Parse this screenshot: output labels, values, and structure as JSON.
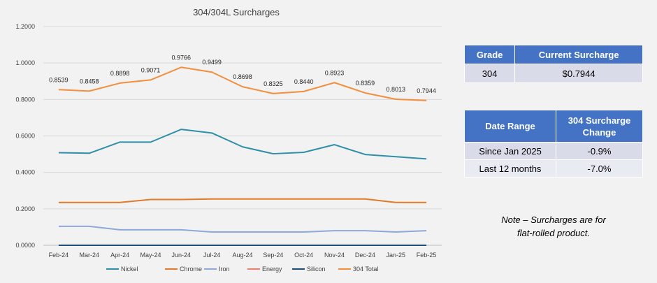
{
  "chart_data": {
    "type": "line",
    "title": "304/304L Surcharges",
    "categories": [
      "Feb-24",
      "Mar-24",
      "Apr-24",
      "May-24",
      "Jun-24",
      "Jul-24",
      "Aug-24",
      "Sep-24",
      "Oct-24",
      "Nov-24",
      "Dec-24",
      "Jan-25",
      "Feb-25"
    ],
    "ylim": [
      0,
      1.2
    ],
    "yticks": [
      "0.0000",
      "0.2000",
      "0.4000",
      "0.6000",
      "0.8000",
      "1.0000",
      "1.2000"
    ],
    "grid": true,
    "legend_position": "bottom",
    "series": [
      {
        "name": "Nickel",
        "color": "#2e8fa8",
        "values": [
          0.508,
          0.505,
          0.566,
          0.566,
          0.636,
          0.616,
          0.54,
          0.502,
          0.51,
          0.552,
          0.498,
          0.486,
          0.474
        ]
      },
      {
        "name": "Chrome",
        "color": "#e07b2a",
        "values": [
          0.235,
          0.235,
          0.235,
          0.251,
          0.251,
          0.254,
          0.254,
          0.254,
          0.254,
          0.254,
          0.254,
          0.235,
          0.235
        ]
      },
      {
        "name": "Iron",
        "color": "#8ea9d8",
        "values": [
          0.104,
          0.104,
          0.085,
          0.085,
          0.085,
          0.073,
          0.073,
          0.073,
          0.073,
          0.08,
          0.08,
          0.073,
          0.08
        ]
      },
      {
        "name": "Energy",
        "color": "#e8826e",
        "values": [
          0,
          0,
          0,
          0,
          0,
          0,
          0,
          0,
          0,
          0,
          0,
          0,
          0
        ]
      },
      {
        "name": "Silicon",
        "color": "#1f4e79",
        "values": [
          0,
          0,
          0,
          0,
          0,
          0,
          0,
          0,
          0,
          0,
          0,
          0,
          0
        ]
      },
      {
        "name": "304 Total",
        "color": "#f28e3c",
        "values": [
          0.8539,
          0.8458,
          0.8898,
          0.9071,
          0.9766,
          0.9499,
          0.8698,
          0.8325,
          0.844,
          0.8923,
          0.8359,
          0.8013,
          0.7944
        ],
        "labels": [
          "0.8539",
          "0.8458",
          "0.8898",
          "0.9071",
          "0.9766",
          "0.9499",
          "0.8698",
          "0.8325",
          "0.8440",
          "0.8923",
          "0.8359",
          "0.8013",
          "0.7944"
        ]
      }
    ]
  },
  "grade_table": {
    "headers": [
      "Grade",
      "Current Surcharge"
    ],
    "row": [
      "304",
      "$0.7944"
    ]
  },
  "range_table": {
    "headers": [
      "Date Range",
      "304 Surcharge Change"
    ],
    "rows": [
      [
        "Since Jan 2025",
        "-0.9%"
      ],
      [
        "Last 12 months",
        "-7.0%"
      ]
    ]
  },
  "note": {
    "line1": "Note – Surcharges are for",
    "line2": "flat-rolled product."
  }
}
